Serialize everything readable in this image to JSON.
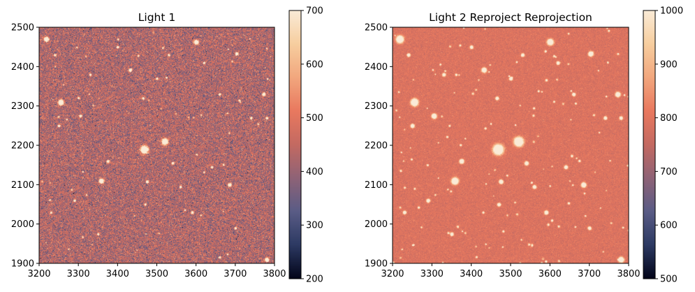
{
  "chart_data": [
    {
      "type": "heatmap",
      "title": "Light 1",
      "xlim": [
        3200,
        3800
      ],
      "ylim": [
        1900,
        2500
      ],
      "x_ticks": [
        "3200",
        "3300",
        "3400",
        "3500",
        "3600",
        "3700",
        "3800"
      ],
      "y_ticks": [
        "1900",
        "2000",
        "2100",
        "2200",
        "2300",
        "2400",
        "2500"
      ],
      "colorbar": {
        "range": [
          200,
          700
        ],
        "ticks": [
          "200",
          "300",
          "400",
          "500",
          "600",
          "700"
        ],
        "colormap": [
          "#03051a",
          "#2d3a63",
          "#5a5c86",
          "#8f6377",
          "#c46a62",
          "#e9795f",
          "#f2a77e",
          "#f7ce9f",
          "#faebd7"
        ]
      },
      "background_level": 430,
      "noise_level": 60,
      "grid": false,
      "sources": [
        {
          "x": 3468,
          "y": 2190,
          "value": 700,
          "size": 3.2
        },
        {
          "x": 3520,
          "y": 2210,
          "value": 700,
          "size": 2.6
        },
        {
          "x": 3255,
          "y": 2310,
          "value": 700,
          "size": 2.2
        },
        {
          "x": 3358,
          "y": 2110,
          "value": 700,
          "size": 2.0
        },
        {
          "x": 3600,
          "y": 2463,
          "value": 700,
          "size": 1.8
        },
        {
          "x": 3218,
          "y": 2470,
          "value": 700,
          "size": 2.0
        },
        {
          "x": 3432,
          "y": 2392,
          "value": 680,
          "size": 1.4
        },
        {
          "x": 3685,
          "y": 2100,
          "value": 680,
          "size": 1.5
        },
        {
          "x": 3772,
          "y": 2330,
          "value": 660,
          "size": 1.4
        },
        {
          "x": 3780,
          "y": 1910,
          "value": 700,
          "size": 1.6
        },
        {
          "x": 3703,
          "y": 2433,
          "value": 650,
          "size": 1.3
        },
        {
          "x": 3475,
          "y": 2108,
          "value": 640,
          "size": 1.2
        },
        {
          "x": 3250,
          "y": 2250,
          "value": 620,
          "size": 1.1
        },
        {
          "x": 3305,
          "y": 2275,
          "value": 620,
          "size": 1.2
        },
        {
          "x": 3375,
          "y": 2160,
          "value": 640,
          "size": 1.2
        },
        {
          "x": 3540,
          "y": 2155,
          "value": 630,
          "size": 1.1
        },
        {
          "x": 3290,
          "y": 2060,
          "value": 620,
          "size": 1.0
        },
        {
          "x": 3560,
          "y": 2095,
          "value": 610,
          "size": 1.0
        },
        {
          "x": 3640,
          "y": 2145,
          "value": 610,
          "size": 1.0
        },
        {
          "x": 3660,
          "y": 2330,
          "value": 600,
          "size": 1.0
        },
        {
          "x": 3530,
          "y": 2430,
          "value": 600,
          "size": 1.0
        },
        {
          "x": 3400,
          "y": 2450,
          "value": 600,
          "size": 1.0
        },
        {
          "x": 3590,
          "y": 2030,
          "value": 620,
          "size": 1.1
        },
        {
          "x": 3470,
          "y": 2050,
          "value": 600,
          "size": 1.0
        },
        {
          "x": 3740,
          "y": 2270,
          "value": 600,
          "size": 1.0
        },
        {
          "x": 3330,
          "y": 2380,
          "value": 600,
          "size": 1.0
        },
        {
          "x": 3230,
          "y": 2030,
          "value": 600,
          "size": 1.0
        },
        {
          "x": 3700,
          "y": 1990,
          "value": 600,
          "size": 1.0
        },
        {
          "x": 3780,
          "y": 2270,
          "value": 600,
          "size": 1.0
        },
        {
          "x": 3240,
          "y": 2430,
          "value": 600,
          "size": 1.0
        },
        {
          "x": 3465,
          "y": 2320,
          "value": 600,
          "size": 1.0
        },
        {
          "x": 3350,
          "y": 1975,
          "value": 600,
          "size": 1.0
        },
        {
          "x": 3620,
          "y": 2410,
          "value": 600,
          "size": 1.0
        },
        {
          "x": 3500,
          "y": 2370,
          "value": 600,
          "size": 1.0
        }
      ],
      "faint_source_count": 60
    },
    {
      "type": "heatmap",
      "title": "Light 2 Reproject Reprojection",
      "xlim": [
        3200,
        3800
      ],
      "ylim": [
        1900,
        2500
      ],
      "x_ticks": [
        "3200",
        "3300",
        "3400",
        "3500",
        "3600",
        "3700",
        "3800"
      ],
      "y_ticks": [
        "1900",
        "2000",
        "2100",
        "2200",
        "2300",
        "2400",
        "2500"
      ],
      "colorbar": {
        "range": [
          500,
          1000
        ],
        "ticks": [
          "500",
          "600",
          "700",
          "800",
          "900",
          "1000"
        ],
        "colormap": [
          "#03051a",
          "#2d3a63",
          "#5a5c86",
          "#8f6377",
          "#c46a62",
          "#e9795f",
          "#f2a77e",
          "#f7ce9f",
          "#faebd7"
        ]
      },
      "background_level": 790,
      "noise_level": 18,
      "grid": false,
      "sources": [
        {
          "x": 3468,
          "y": 2190,
          "value": 1000,
          "size": 4.2
        },
        {
          "x": 3520,
          "y": 2210,
          "value": 1000,
          "size": 3.8
        },
        {
          "x": 3255,
          "y": 2310,
          "value": 1000,
          "size": 3.0
        },
        {
          "x": 3358,
          "y": 2110,
          "value": 1000,
          "size": 2.8
        },
        {
          "x": 3600,
          "y": 2463,
          "value": 1000,
          "size": 2.5
        },
        {
          "x": 3218,
          "y": 2470,
          "value": 1000,
          "size": 3.0
        },
        {
          "x": 3432,
          "y": 2392,
          "value": 1000,
          "size": 2.0
        },
        {
          "x": 3685,
          "y": 2100,
          "value": 1000,
          "size": 2.0
        },
        {
          "x": 3772,
          "y": 2330,
          "value": 1000,
          "size": 2.0
        },
        {
          "x": 3780,
          "y": 1910,
          "value": 1000,
          "size": 2.2
        },
        {
          "x": 3703,
          "y": 2433,
          "value": 1000,
          "size": 2.0
        },
        {
          "x": 3475,
          "y": 2108,
          "value": 980,
          "size": 1.7
        },
        {
          "x": 3250,
          "y": 2250,
          "value": 980,
          "size": 1.6
        },
        {
          "x": 3305,
          "y": 2275,
          "value": 1000,
          "size": 2.0
        },
        {
          "x": 3375,
          "y": 2160,
          "value": 1000,
          "size": 1.8
        },
        {
          "x": 3540,
          "y": 2155,
          "value": 980,
          "size": 1.6
        },
        {
          "x": 3290,
          "y": 2060,
          "value": 960,
          "size": 1.5
        },
        {
          "x": 3560,
          "y": 2095,
          "value": 960,
          "size": 1.5
        },
        {
          "x": 3640,
          "y": 2145,
          "value": 960,
          "size": 1.5
        },
        {
          "x": 3660,
          "y": 2330,
          "value": 950,
          "size": 1.4
        },
        {
          "x": 3530,
          "y": 2430,
          "value": 950,
          "size": 1.4
        },
        {
          "x": 3400,
          "y": 2450,
          "value": 950,
          "size": 1.4
        },
        {
          "x": 3590,
          "y": 2030,
          "value": 980,
          "size": 1.6
        },
        {
          "x": 3470,
          "y": 2050,
          "value": 950,
          "size": 1.4
        },
        {
          "x": 3740,
          "y": 2270,
          "value": 950,
          "size": 1.4
        },
        {
          "x": 3330,
          "y": 2380,
          "value": 950,
          "size": 1.4
        },
        {
          "x": 3230,
          "y": 2030,
          "value": 950,
          "size": 1.4
        },
        {
          "x": 3700,
          "y": 1990,
          "value": 950,
          "size": 1.4
        },
        {
          "x": 3780,
          "y": 2270,
          "value": 950,
          "size": 1.4
        },
        {
          "x": 3240,
          "y": 2430,
          "value": 950,
          "size": 1.4
        },
        {
          "x": 3465,
          "y": 2320,
          "value": 950,
          "size": 1.4
        },
        {
          "x": 3350,
          "y": 1975,
          "value": 950,
          "size": 1.4
        },
        {
          "x": 3620,
          "y": 2410,
          "value": 950,
          "size": 1.4
        },
        {
          "x": 3500,
          "y": 2370,
          "value": 950,
          "size": 1.4
        }
      ],
      "faint_source_count": 140
    }
  ]
}
